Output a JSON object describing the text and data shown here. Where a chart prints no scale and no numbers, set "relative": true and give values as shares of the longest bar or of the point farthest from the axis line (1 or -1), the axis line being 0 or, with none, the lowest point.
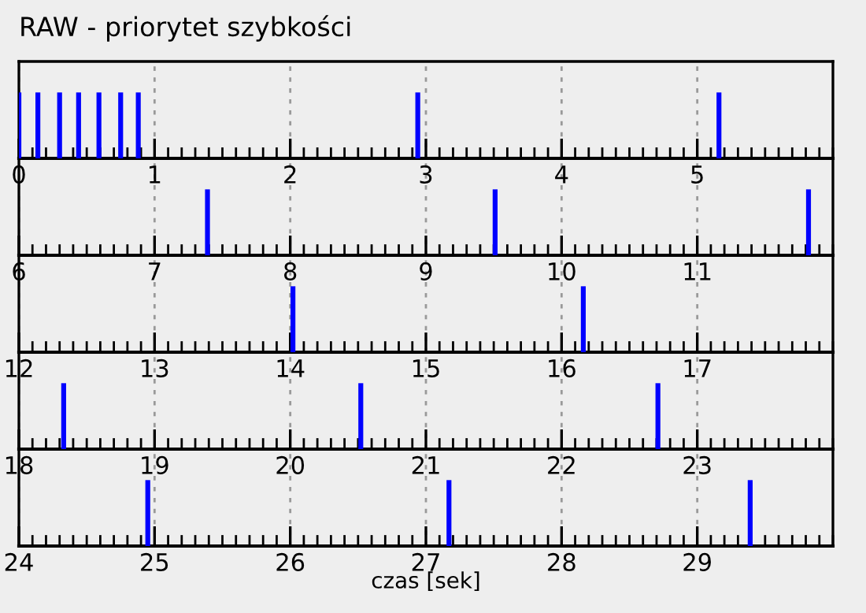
{
  "chart_data": [
    {
      "type": "bar",
      "title": "RAW - priorytet szybkości",
      "relative": true,
      "color": "#0000ff",
      "grid": "x",
      "x": [
        0,
        0.14,
        0.3,
        0.44,
        0.59,
        0.75,
        0.88,
        2.94,
        5.16
      ],
      "values": [
        1,
        1,
        1,
        1,
        1,
        1,
        1,
        1,
        1
      ],
      "xlim": [
        0,
        6
      ],
      "xticks": [
        0,
        1,
        2,
        3,
        4,
        5
      ]
    },
    {
      "type": "bar",
      "relative": true,
      "color": "#0000ff",
      "grid": "x",
      "x": [
        7.39,
        9.51,
        11.82
      ],
      "values": [
        1,
        1,
        1
      ],
      "xlim": [
        6,
        12
      ],
      "xticks": [
        6,
        7,
        8,
        9,
        10,
        11
      ]
    },
    {
      "type": "bar",
      "relative": true,
      "color": "#0000ff",
      "grid": "x",
      "x": [
        14.02,
        16.16
      ],
      "values": [
        1,
        1
      ],
      "xlim": [
        12,
        18
      ],
      "xticks": [
        12,
        13,
        14,
        15,
        16,
        17
      ]
    },
    {
      "type": "bar",
      "relative": true,
      "color": "#0000ff",
      "grid": "x",
      "x": [
        18.33,
        20.52,
        22.71
      ],
      "values": [
        1,
        1,
        1
      ],
      "xlim": [
        18,
        24
      ],
      "xticks": [
        18,
        19,
        20,
        21,
        22,
        23
      ]
    },
    {
      "type": "bar",
      "relative": true,
      "color": "#0000ff",
      "grid": "x",
      "x": [
        24.95,
        27.17,
        29.39
      ],
      "values": [
        1,
        1,
        1
      ],
      "xlim": [
        24,
        30
      ],
      "xticks": [
        24,
        25,
        26,
        27,
        28,
        29
      ],
      "xlabel": "czas [sek]"
    }
  ]
}
